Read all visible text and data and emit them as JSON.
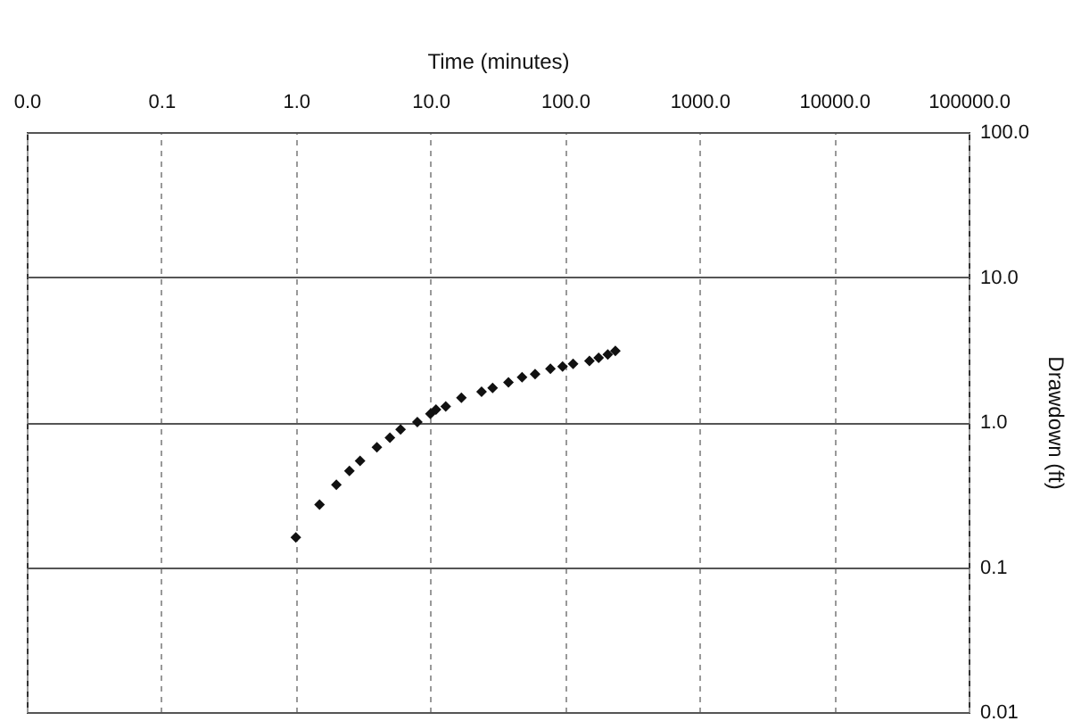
{
  "chart_data": {
    "type": "scatter",
    "xlabel": "Time (minutes)",
    "ylabel": "Drawdown (ft)",
    "x": [
      1.0,
      1.5,
      2,
      2.5,
      3,
      4,
      5,
      6,
      8,
      10,
      11,
      13,
      17,
      24,
      29,
      38,
      48,
      60,
      78,
      96,
      115,
      152,
      178,
      208,
      237
    ],
    "series": [
      {
        "color": "#111111",
        "values": [
          0.16,
          0.27,
          0.37,
          0.46,
          0.54,
          0.67,
          0.78,
          0.89,
          1.0,
          1.14,
          1.22,
          1.28,
          1.47,
          1.62,
          1.72,
          1.88,
          2.04,
          2.14,
          2.33,
          2.42,
          2.52,
          2.64,
          2.77,
          2.93,
          3.1
        ]
      }
    ],
    "log": "xy",
    "xlim": [
      0.01,
      100000
    ],
    "ylim": [
      0.01,
      100
    ],
    "xticks": [
      {
        "value": 0.01,
        "label": "0.0"
      },
      0.1,
      {
        "value": 1,
        "label": "1.0"
      },
      {
        "value": 10,
        "label": "10.0"
      },
      {
        "value": 100,
        "label": "100.0"
      },
      {
        "value": 1000,
        "label": "1000.0"
      },
      {
        "value": 10000,
        "label": "10000.0"
      },
      {
        "value": 100000,
        "label": "100000.0"
      }
    ],
    "yticks": [
      0.01,
      0.1,
      {
        "value": 1,
        "label": "1.0"
      },
      {
        "value": 10,
        "label": "10.0"
      },
      {
        "value": 100,
        "label": "100.0"
      }
    ],
    "grid": true,
    "marker": "diamond"
  }
}
